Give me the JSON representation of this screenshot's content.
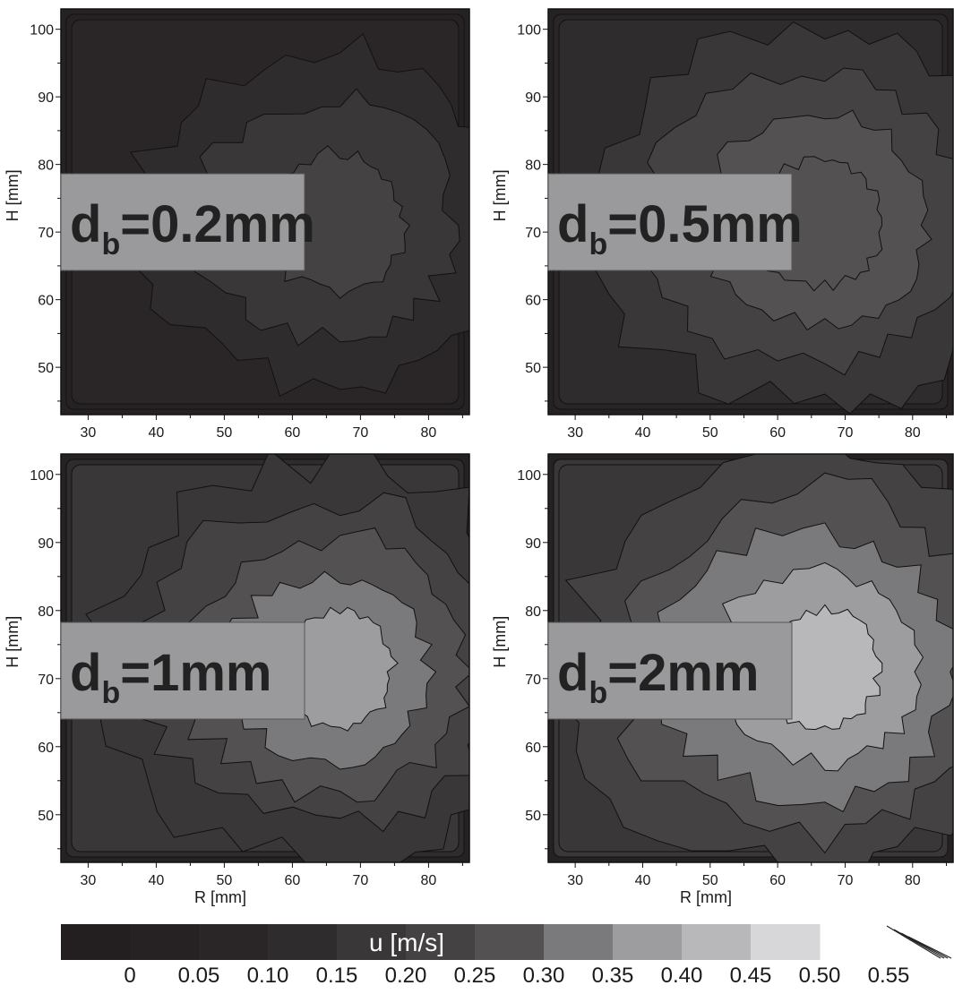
{
  "chart_data": {
    "type": "heatmap",
    "panels": [
      {
        "label_main": "d",
        "label_sub": "b",
        "label_rest": "=0.2mm",
        "peak": 0.26,
        "bg": 0.12,
        "area": 0.78,
        "grid_rows": 0.14,
        "show_xlabel": false,
        "show_ylabel": true
      },
      {
        "label_main": "d",
        "label_sub": "b",
        "label_rest": "=0.5mm",
        "peak": 0.34,
        "bg": 0.16,
        "area": 0.9,
        "grid_rows": 0.17,
        "show_xlabel": false,
        "show_ylabel": true
      },
      {
        "label_main": "d",
        "label_sub": "b",
        "label_rest": "=1mm",
        "peak": 0.44,
        "bg": 0.2,
        "area": 0.95,
        "grid_rows": 0.22,
        "show_xlabel": true,
        "show_ylabel": true
      },
      {
        "label_main": "d",
        "label_sub": "b",
        "label_rest": "=2mm",
        "peak": 0.5,
        "bg": 0.24,
        "area": 1.0,
        "grid_rows": 0.26,
        "show_xlabel": true,
        "show_ylabel": true
      }
    ],
    "x_ticks": [
      "30",
      "40",
      "50",
      "60",
      "70",
      "80"
    ],
    "y_ticks": [
      "100",
      "90",
      "80",
      "70",
      "60",
      "50"
    ],
    "xlim": [
      26,
      86
    ],
    "ylim": [
      43,
      103
    ],
    "xlabel": "R [mm]",
    "ylabel": "H [mm]",
    "colorbar": {
      "title": "u [m/s]",
      "levels": [
        "0",
        "0.05",
        "0.10",
        "0.15",
        "0.20",
        "0.25",
        "0.30",
        "0.35",
        "0.40",
        "0.45",
        "0.50",
        "0.55"
      ],
      "colors": [
        "#231f20",
        "#262223",
        "#2a2627",
        "#2f2c2d",
        "#3a3738",
        "#454243",
        "#535152",
        "#7a797b",
        "#9d9c9e",
        "#b8b8ba",
        "#d7d7d9"
      ]
    }
  }
}
